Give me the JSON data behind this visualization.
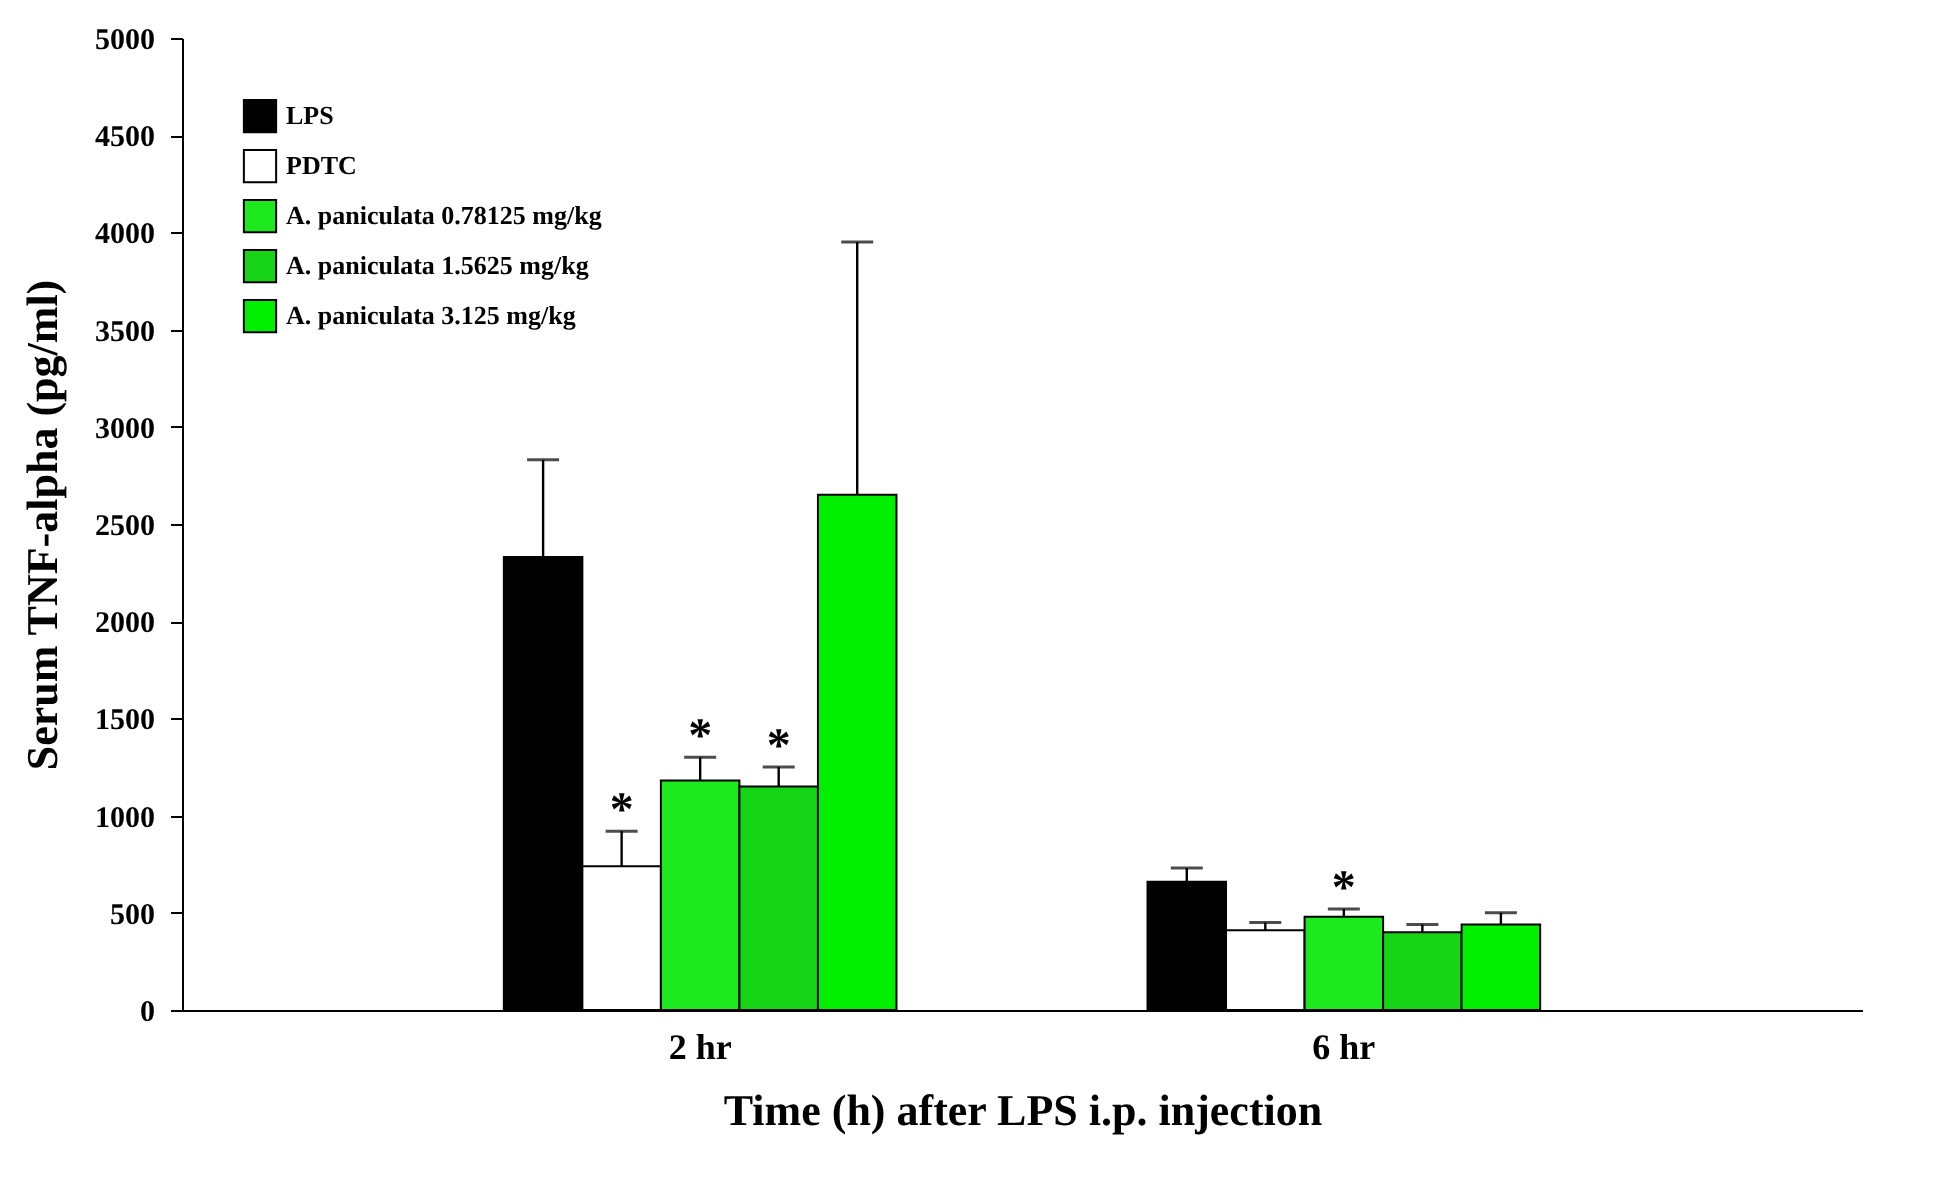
{
  "chart_data": {
    "type": "bar",
    "xlabel": "Time (h) after LPS i.p. injection",
    "ylabel": "Serum TNF-alpha (pg/ml)",
    "categories": [
      "2 hr",
      "6 hr"
    ],
    "series": [
      {
        "name": "LPS",
        "color": "#000000",
        "values": [
          2330,
          660
        ],
        "errors": [
          [
            2330,
            2830
          ],
          [
            660,
            730
          ]
        ]
      },
      {
        "name": "PDTC",
        "color": "#ffffff",
        "values": [
          740,
          410
        ],
        "errors": [
          [
            740,
            920
          ],
          [
            410,
            450
          ]
        ],
        "value_labels": [
          "*",
          null
        ]
      },
      {
        "name": "A. paniculata 0.78125 mg/kg",
        "color": "#1ee81e",
        "values": [
          1180,
          480
        ],
        "errors": [
          [
            1180,
            1300
          ],
          [
            480,
            520
          ]
        ],
        "value_labels": [
          "*",
          "*"
        ]
      },
      {
        "name": "A. paniculata 1.5625 mg/kg",
        "color": "#16d416",
        "values": [
          1150,
          400
        ],
        "errors": [
          [
            1150,
            1250
          ],
          [
            400,
            440
          ]
        ],
        "value_labels": [
          "*",
          null
        ]
      },
      {
        "name": "A. paniculata 3.125 mg/kg",
        "color": "#00f000",
        "values": [
          2650,
          440
        ],
        "errors": [
          [
            2650,
            3950
          ],
          [
            440,
            500
          ]
        ]
      }
    ],
    "ylim": [
      0,
      5000
    ],
    "yticks": [
      0,
      500,
      1000,
      1500,
      2000,
      2500,
      3000,
      3500,
      4000,
      4500,
      5000
    ],
    "grid": false,
    "legend": "top left"
  }
}
